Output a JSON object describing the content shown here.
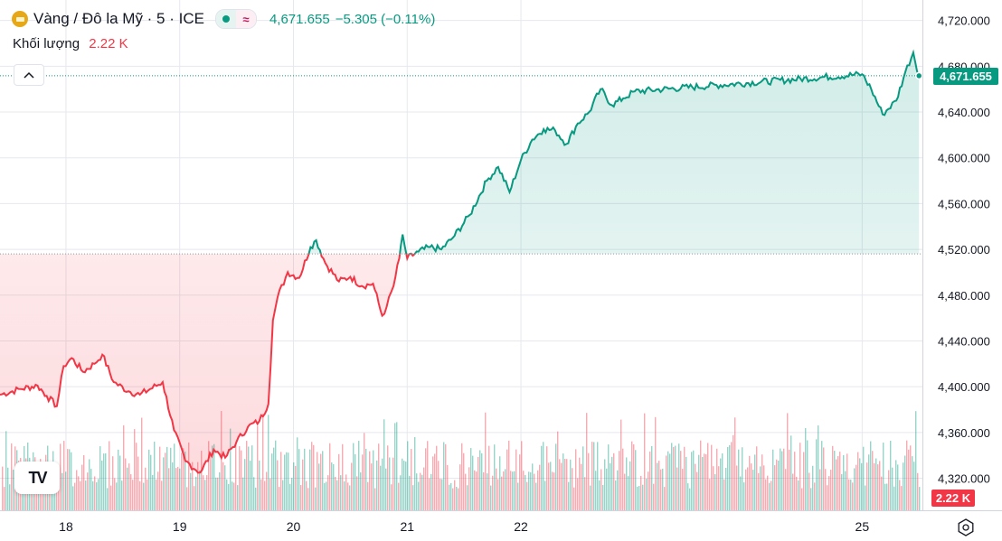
{
  "legend": {
    "icon": "gold-coin-icon",
    "title": "Vàng / Đô la Mỹ · 5 · ICE",
    "price": "4,671.655",
    "change": "−5.305 (−0.11%)",
    "volume_label": "Khối lượng",
    "volume_value": "2.22 K"
  },
  "tags": {
    "last_price": "4,671.655",
    "last_volume": "2.22 K"
  },
  "logo_text": "TV",
  "colors": {
    "up": "#089981",
    "down": "#f23645",
    "grid": "#e6e8ee",
    "axis_text": "#131722"
  },
  "chart_data": {
    "type": "area",
    "title": "Vàng / Đô la Mỹ · 5 · ICE",
    "x_ticks": [
      {
        "x": 18,
        "label": "18"
      },
      {
        "x": 19,
        "label": "19"
      },
      {
        "x": 20,
        "label": "20"
      },
      {
        "x": 21,
        "label": "21"
      },
      {
        "x": 22,
        "label": "22"
      },
      {
        "x": 25,
        "label": "25"
      }
    ],
    "y_ticks": [
      "4,320.000",
      "4,360.000",
      "4,400.000",
      "4,440.000",
      "4,480.000",
      "4,520.000",
      "4,560.000",
      "4,600.000",
      "4,640.000",
      "4,680.000",
      "4,720.000"
    ],
    "ylim": [
      4292,
      4730
    ],
    "xlim": [
      17.42,
      25.53
    ],
    "baseline": 4516,
    "last_price": 4671.655,
    "series": [
      {
        "x": [
          17.42,
          17.6,
          17.75,
          17.83,
          17.92,
          17.98,
          18.05,
          18.15,
          18.25,
          18.32,
          18.42,
          18.55,
          18.65,
          18.85,
          18.95,
          19.05,
          19.18,
          19.3,
          19.4,
          19.5,
          19.6,
          19.7,
          19.78,
          19.82,
          19.86,
          19.95,
          20.05,
          20.15,
          20.2,
          20.28,
          20.4,
          20.5,
          20.6,
          20.7,
          20.78,
          20.82,
          20.88,
          20.93,
          20.96,
          21.0,
          21.1,
          21.2,
          21.3,
          21.4,
          21.55,
          21.7,
          21.8,
          21.9,
          22.0,
          22.1,
          22.2,
          22.3,
          22.4,
          22.5,
          22.6,
          22.7,
          22.8,
          22.9,
          23.0,
          25.0,
          25.08,
          25.18,
          25.3,
          25.38,
          25.45,
          25.5
        ],
        "y": [
          4393,
          4398,
          4401,
          4392,
          4383,
          4418,
          4425,
          4413,
          4420,
          4428,
          4404,
          4396,
          4393,
          4404,
          4362,
          4335,
          4325,
          4345,
          4338,
          4352,
          4365,
          4370,
          4385,
          4458,
          4478,
          4500,
          4495,
          4522,
          4528,
          4508,
          4492,
          4496,
          4488,
          4490,
          4462,
          4470,
          4488,
          4512,
          4533,
          4512,
          4518,
          4522,
          4520,
          4530,
          4550,
          4580,
          4592,
          4570,
          4598,
          4616,
          4625,
          4624,
          4612,
          4630,
          4640,
          4660,
          4646,
          4652,
          4658,
          4673,
          4660,
          4638,
          4650,
          4675,
          4692,
          4671.655
        ]
      }
    ],
    "volume": {
      "ylim": [
        0,
        5000
      ],
      "last": "2.22 K"
    }
  }
}
